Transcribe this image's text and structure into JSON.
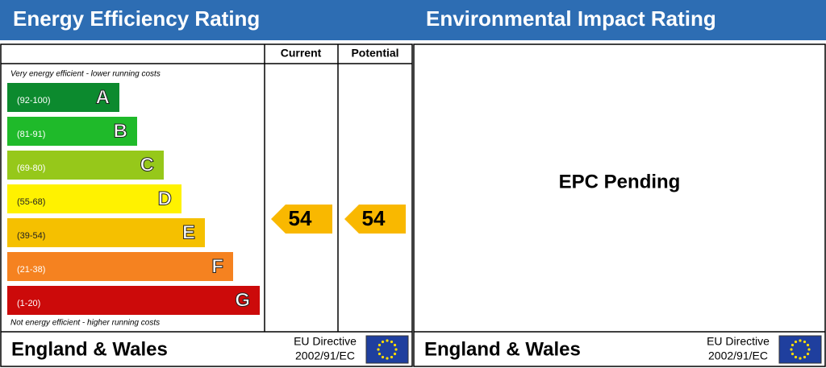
{
  "left": {
    "title": "Energy Efficiency Rating",
    "columns": [
      "Current",
      "Potential"
    ],
    "top_note": "Very energy efficient - lower running costs",
    "bottom_note": "Not energy efficient - higher running costs",
    "bands": [
      {
        "range": "(92-100)",
        "letter": "A",
        "color": "#0c8a2e"
      },
      {
        "range": "(81-91)",
        "letter": "B",
        "color": "#1fba2a"
      },
      {
        "range": "(69-80)",
        "letter": "C",
        "color": "#96c81a"
      },
      {
        "range": "(55-68)",
        "letter": "D",
        "color": "#fff200"
      },
      {
        "range": "(39-54)",
        "letter": "E",
        "color": "#f5c000"
      },
      {
        "range": "(21-38)",
        "letter": "F",
        "color": "#f58220"
      },
      {
        "range": "(1-20)",
        "letter": "G",
        "color": "#cc0a0a"
      }
    ],
    "current": 54,
    "potential": 54,
    "arrow_color": "#f9b800",
    "footer": {
      "region": "England & Wales",
      "directive": [
        "EU Directive",
        "2002/91/EC"
      ]
    }
  },
  "right": {
    "title": "Environmental Impact Rating",
    "status": "EPC Pending",
    "footer": {
      "region": "England & Wales",
      "directive": [
        "EU Directive",
        "2002/91/EC"
      ]
    }
  }
}
